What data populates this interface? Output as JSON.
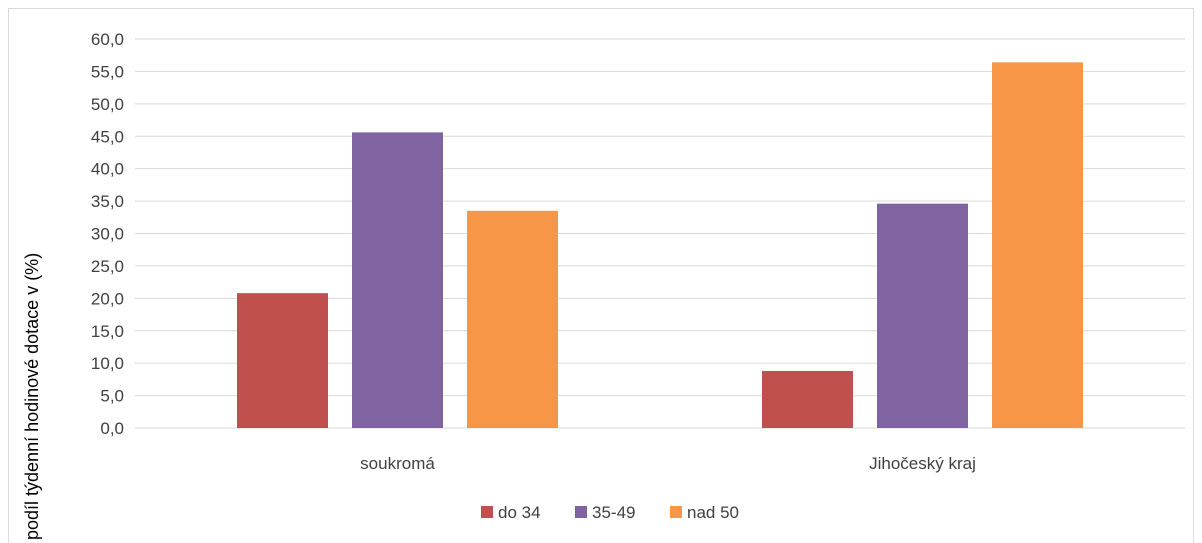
{
  "chart_data": {
    "type": "bar",
    "title": "",
    "ylabel": "podíl týdenní hodinové dotace v (%)",
    "xlabel": "",
    "categories": [
      "soukromá",
      "Jihočeský kraj"
    ],
    "series": [
      {
        "name": "do 34",
        "values": [
          20.8,
          8.8
        ],
        "color": "#c0504d"
      },
      {
        "name": "35-49",
        "values": [
          45.6,
          34.6
        ],
        "color": "#8064a2"
      },
      {
        "name": "nad 50",
        "values": [
          33.5,
          56.4
        ],
        "color": "#f79646"
      }
    ],
    "ylim": [
      0,
      60
    ],
    "yticks": [
      "0,0",
      "5,0",
      "10,0",
      "15,0",
      "20,0",
      "25,0",
      "30,0",
      "35,0",
      "40,0",
      "45,0",
      "50,0",
      "55,0",
      "60,0"
    ],
    "grid": true,
    "legend": "bottom"
  }
}
